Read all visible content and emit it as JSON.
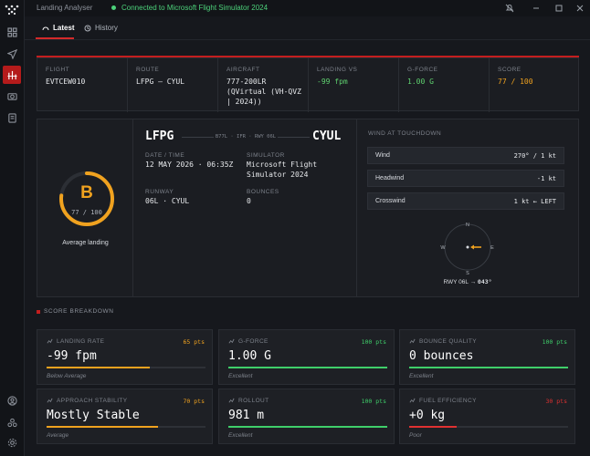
{
  "titlebar": {
    "app_title": "Landing Analyser",
    "status": "Connected to Microsoft Flight Simulator 2024"
  },
  "tabs": [
    {
      "label": "Latest"
    },
    {
      "label": "History"
    }
  ],
  "flight_info": [
    {
      "label": "FLIGHT",
      "value": "EVTCEW010"
    },
    {
      "label": "ROUTE",
      "value": "LFPG — CYUL"
    },
    {
      "label": "AIRCRAFT",
      "value": "777-200LR (QVirtual (VH-QVZ | 2024))"
    },
    {
      "label": "LANDING VS",
      "value": "-99 fpm",
      "color": "#5fd06f"
    },
    {
      "label": "G-FORCE",
      "value": "1.00 G",
      "color": "#5fd06f"
    },
    {
      "label": "SCORE",
      "value": "77 / 100",
      "color": "#f0a21f"
    }
  ],
  "summary": {
    "grade": "B",
    "grade_score": "77 / 100",
    "grade_label": "Average landing",
    "score_fraction": 0.77,
    "origin": "LFPG",
    "destination": "CYUL",
    "route_note": "B77L · IFR · RWY 06L",
    "date_label": "DATE / TIME",
    "date_value": "12 MAY 2026 · 06:35Z",
    "sim_label": "SIMULATOR",
    "sim_value": "Microsoft Flight Simulator 2024",
    "runway_label": "RUNWAY",
    "runway_value": "06L · CYUL",
    "bounces_label": "BOUNCES",
    "bounces_value": "0"
  },
  "wind": {
    "title": "WIND AT TOUCHDOWN",
    "rows": [
      {
        "label": "Wind",
        "value": "270° / 1 kt"
      },
      {
        "label": "Headwind",
        "value": "-1 kt"
      },
      {
        "label": "Crosswind",
        "value": "1 kt ← LEFT"
      }
    ],
    "compass": {
      "n": "N",
      "e": "E",
      "s": "S",
      "w": "W"
    },
    "runway_caption": "RWY 06L",
    "runway_arrow": "→",
    "runway_heading": "043°"
  },
  "breakdown": {
    "title": "SCORE BREAKDOWN",
    "cards": [
      {
        "label": "LANDING RATE",
        "pts": "65 pts",
        "value": "-99 fpm",
        "sub": "Below Average",
        "fraction": 0.65,
        "color": "#f0a21f",
        "icon": "landing-rate-icon"
      },
      {
        "label": "G-FORCE",
        "pts": "100 pts",
        "value": "1.00 G",
        "sub": "Excellent",
        "fraction": 1.0,
        "color": "#3fcf6a",
        "icon": "gauge-icon"
      },
      {
        "label": "BOUNCE QUALITY",
        "pts": "100 pts",
        "value": "0 bounces",
        "sub": "Excellent",
        "fraction": 1.0,
        "color": "#3fcf6a",
        "icon": "wave-icon"
      },
      {
        "label": "APPROACH STABILITY",
        "pts": "70 pts",
        "value": "Mostly Stable",
        "sub": "Average",
        "fraction": 0.7,
        "color": "#f0a21f",
        "icon": "approach-icon"
      },
      {
        "label": "ROLLOUT",
        "pts": "100 pts",
        "value": "981 m",
        "sub": "Excellent",
        "fraction": 1.0,
        "color": "#3fcf6a",
        "icon": "rollout-icon"
      },
      {
        "label": "FUEL EFFICIENCY",
        "pts": "30 pts",
        "value": "+0 kg",
        "sub": "Poor",
        "fraction": 0.3,
        "color": "#e03131",
        "icon": "fuel-icon"
      }
    ]
  },
  "colors": {
    "accent": "#c41e1e",
    "good": "#3fcf6a",
    "warn": "#f0a21f",
    "bad": "#e03131"
  }
}
